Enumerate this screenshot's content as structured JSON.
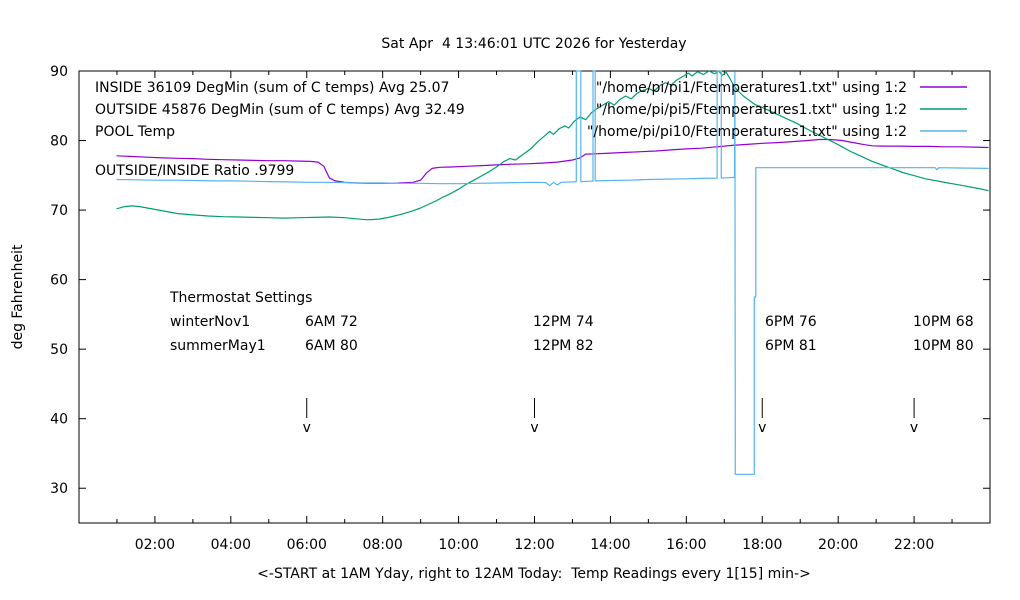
{
  "title": "Sat Apr  4 13:46:01 UTC 2026 for Yesterday",
  "axes": {
    "y_label": "deg Fahrenheit",
    "x_label": "<-START at 1AM Yday, right to 12AM Today:  Temp Readings every 1[15] min->",
    "y_ticks": [
      30,
      40,
      50,
      60,
      70,
      80,
      90
    ],
    "x_ticks": [
      {
        "hour": 2,
        "label": "02:00"
      },
      {
        "hour": 4,
        "label": "04:00"
      },
      {
        "hour": 6,
        "label": "06:00"
      },
      {
        "hour": 8,
        "label": "08:00"
      },
      {
        "hour": 10,
        "label": "10:00"
      },
      {
        "hour": 12,
        "label": "12:00"
      },
      {
        "hour": 14,
        "label": "14:00"
      },
      {
        "hour": 16,
        "label": "16:00"
      },
      {
        "hour": 18,
        "label": "18:00"
      },
      {
        "hour": 20,
        "label": "20:00"
      },
      {
        "hour": 22,
        "label": "22:00"
      }
    ]
  },
  "labels": {
    "inside": "INSIDE 36109 DegMin (sum of C temps) Avg 25.07",
    "outside": "OUTSIDE 45876 DegMin (sum of C temps) Avg 32.49",
    "pool": "POOL Temp",
    "ratio": "OUTSIDE/INSIDE Ratio .9799"
  },
  "legend": [
    {
      "label": "\"/home/pi/pi1/Ftemperatures1.txt\" using 1:2",
      "color": "#9400d3"
    },
    {
      "label": "\"/home/pi/pi5/Ftemperatures1.txt\" using 1:2",
      "color": "#009e73"
    },
    {
      "label": "\"/home/pi/pi10/Ftemperatures1.txt\" using 1:2",
      "color": "#56b4e9"
    }
  ],
  "thermostat": {
    "heading": "Thermostat Settings",
    "rows": [
      {
        "name": "winterNov1",
        "settings": [
          "6AM 72",
          "12PM 74",
          "6PM 76",
          "10PM 68"
        ]
      },
      {
        "name": "summerMay1",
        "settings": [
          "6AM 80",
          "12PM 82",
          "6PM 81",
          "10PM 80"
        ]
      }
    ]
  },
  "arrows": {
    "glyph": "v",
    "hours": [
      6,
      12,
      18,
      22
    ]
  },
  "chart_data": {
    "type": "line",
    "xlim": [
      0,
      24
    ],
    "ylim": [
      25,
      90
    ],
    "xlabel": "<-START at 1AM Yday, right to 12AM Today:  Temp Readings every 1[15] min->",
    "ylabel": "deg Fahrenheit",
    "grid": false,
    "legend_position": "top-right-inside",
    "series": [
      {
        "name": "INSIDE /home/pi/pi1/Ftemperatures1.txt",
        "color": "#9400d3",
        "points": [
          [
            1.0,
            77.8
          ],
          [
            1.4,
            77.7
          ],
          [
            1.8,
            77.6
          ],
          [
            2.2,
            77.5
          ],
          [
            2.6,
            77.45
          ],
          [
            3.0,
            77.4
          ],
          [
            3.4,
            77.3
          ],
          [
            3.8,
            77.25
          ],
          [
            4.2,
            77.2
          ],
          [
            4.6,
            77.15
          ],
          [
            5.0,
            77.1
          ],
          [
            5.4,
            77.1
          ],
          [
            5.8,
            77.05
          ],
          [
            6.1,
            77.0
          ],
          [
            6.3,
            76.9
          ],
          [
            6.45,
            76.3
          ],
          [
            6.6,
            74.6
          ],
          [
            6.75,
            74.2
          ],
          [
            7.0,
            74.0
          ],
          [
            7.3,
            73.9
          ],
          [
            7.6,
            73.85
          ],
          [
            8.0,
            73.85
          ],
          [
            8.4,
            73.9
          ],
          [
            8.8,
            74.0
          ],
          [
            9.0,
            74.3
          ],
          [
            9.15,
            75.3
          ],
          [
            9.3,
            76.0
          ],
          [
            9.5,
            76.15
          ],
          [
            9.8,
            76.2
          ],
          [
            10.2,
            76.3
          ],
          [
            10.6,
            76.4
          ],
          [
            11.0,
            76.5
          ],
          [
            11.4,
            76.6
          ],
          [
            11.8,
            76.65
          ],
          [
            12.2,
            76.75
          ],
          [
            12.6,
            76.9
          ],
          [
            13.0,
            77.2
          ],
          [
            13.2,
            77.5
          ],
          [
            13.35,
            78.05
          ],
          [
            13.6,
            78.1
          ],
          [
            14.0,
            78.2
          ],
          [
            14.4,
            78.3
          ],
          [
            14.8,
            78.4
          ],
          [
            15.2,
            78.5
          ],
          [
            15.6,
            78.65
          ],
          [
            16.0,
            78.8
          ],
          [
            16.4,
            78.9
          ],
          [
            16.8,
            79.1
          ],
          [
            17.2,
            79.3
          ],
          [
            17.6,
            79.45
          ],
          [
            18.0,
            79.6
          ],
          [
            18.4,
            79.7
          ],
          [
            18.8,
            79.85
          ],
          [
            19.2,
            80.0
          ],
          [
            19.5,
            80.15
          ],
          [
            19.8,
            80.15
          ],
          [
            20.1,
            80.0
          ],
          [
            20.4,
            79.7
          ],
          [
            20.7,
            79.4
          ],
          [
            20.9,
            79.25
          ],
          [
            21.2,
            79.2
          ],
          [
            21.6,
            79.2
          ],
          [
            22.0,
            79.15
          ],
          [
            22.4,
            79.15
          ],
          [
            22.8,
            79.1
          ],
          [
            23.2,
            79.1
          ],
          [
            23.6,
            79.05
          ],
          [
            23.95,
            79.0
          ]
        ]
      },
      {
        "name": "OUTSIDE /home/pi/pi5/Ftemperatures1.txt",
        "color": "#009e73",
        "points": [
          [
            1.0,
            70.2
          ],
          [
            1.2,
            70.5
          ],
          [
            1.4,
            70.6
          ],
          [
            1.6,
            70.5
          ],
          [
            1.8,
            70.3
          ],
          [
            2.0,
            70.1
          ],
          [
            2.3,
            69.8
          ],
          [
            2.6,
            69.5
          ],
          [
            3.0,
            69.3
          ],
          [
            3.4,
            69.15
          ],
          [
            3.8,
            69.05
          ],
          [
            4.2,
            69.0
          ],
          [
            4.6,
            68.95
          ],
          [
            5.0,
            68.9
          ],
          [
            5.4,
            68.85
          ],
          [
            5.8,
            68.9
          ],
          [
            6.2,
            68.95
          ],
          [
            6.6,
            69.0
          ],
          [
            7.0,
            68.9
          ],
          [
            7.3,
            68.75
          ],
          [
            7.6,
            68.6
          ],
          [
            7.9,
            68.7
          ],
          [
            8.2,
            69.0
          ],
          [
            8.5,
            69.4
          ],
          [
            8.8,
            69.9
          ],
          [
            9.0,
            70.3
          ],
          [
            9.2,
            70.8
          ],
          [
            9.4,
            71.3
          ],
          [
            9.6,
            71.9
          ],
          [
            9.8,
            72.4
          ],
          [
            10.0,
            73.0
          ],
          [
            10.2,
            73.7
          ],
          [
            10.4,
            74.3
          ],
          [
            10.6,
            74.9
          ],
          [
            10.8,
            75.5
          ],
          [
            11.0,
            76.2
          ],
          [
            11.2,
            77.0
          ],
          [
            11.35,
            77.4
          ],
          [
            11.5,
            77.2
          ],
          [
            11.7,
            78.0
          ],
          [
            11.9,
            78.8
          ],
          [
            12.1,
            79.9
          ],
          [
            12.25,
            80.6
          ],
          [
            12.4,
            81.3
          ],
          [
            12.5,
            80.9
          ],
          [
            12.65,
            81.7
          ],
          [
            12.8,
            82.1
          ],
          [
            12.9,
            81.8
          ],
          [
            13.05,
            82.8
          ],
          [
            13.2,
            83.4
          ],
          [
            13.35,
            83.0
          ],
          [
            13.5,
            84.0
          ],
          [
            13.65,
            84.6
          ],
          [
            13.8,
            85.1
          ],
          [
            13.95,
            85.6
          ],
          [
            14.1,
            85.1
          ],
          [
            14.25,
            85.9
          ],
          [
            14.4,
            86.4
          ],
          [
            14.55,
            86.0
          ],
          [
            14.7,
            86.8
          ],
          [
            14.85,
            87.2
          ],
          [
            15.0,
            87.5
          ],
          [
            15.15,
            87.1
          ],
          [
            15.3,
            87.9
          ],
          [
            15.45,
            88.3
          ],
          [
            15.6,
            88.0
          ],
          [
            15.75,
            88.7
          ],
          [
            15.9,
            89.2
          ],
          [
            16.05,
            89.7
          ],
          [
            16.15,
            89.3
          ],
          [
            16.3,
            89.9
          ],
          [
            16.45,
            89.5
          ],
          [
            16.6,
            90.0
          ],
          [
            16.75,
            89.6
          ],
          [
            16.85,
            90.0
          ],
          [
            16.95,
            89.4
          ],
          [
            17.05,
            89.8
          ],
          [
            17.15,
            88.9
          ],
          [
            17.25,
            87.9
          ],
          [
            17.35,
            87.2
          ],
          [
            17.5,
            86.4
          ],
          [
            17.65,
            85.8
          ],
          [
            17.8,
            85.2
          ],
          [
            17.95,
            84.9
          ],
          [
            18.1,
            84.5
          ],
          [
            18.3,
            84.0
          ],
          [
            18.5,
            83.5
          ],
          [
            18.7,
            83.0
          ],
          [
            18.9,
            82.5
          ],
          [
            19.1,
            81.9
          ],
          [
            19.3,
            81.3
          ],
          [
            19.5,
            80.8
          ],
          [
            19.7,
            80.2
          ],
          [
            19.9,
            79.7
          ],
          [
            20.1,
            79.1
          ],
          [
            20.3,
            78.5
          ],
          [
            20.5,
            78.0
          ],
          [
            20.7,
            77.5
          ],
          [
            20.9,
            77.0
          ],
          [
            21.1,
            76.6
          ],
          [
            21.3,
            76.2
          ],
          [
            21.5,
            75.8
          ],
          [
            21.7,
            75.4
          ],
          [
            21.9,
            75.1
          ],
          [
            22.1,
            74.8
          ],
          [
            22.3,
            74.5
          ],
          [
            22.5,
            74.3
          ],
          [
            22.7,
            74.1
          ],
          [
            22.9,
            73.9
          ],
          [
            23.1,
            73.7
          ],
          [
            23.3,
            73.5
          ],
          [
            23.5,
            73.3
          ],
          [
            23.7,
            73.1
          ],
          [
            23.95,
            72.8
          ]
        ]
      },
      {
        "name": "POOL /home/pi/pi10/Ftemperatures1.txt",
        "color": "#56b4e9",
        "points": [
          [
            1.0,
            74.4
          ],
          [
            1.5,
            74.35
          ],
          [
            2.0,
            74.3
          ],
          [
            2.5,
            74.3
          ],
          [
            3.0,
            74.25
          ],
          [
            3.5,
            74.2
          ],
          [
            4.0,
            74.2
          ],
          [
            4.5,
            74.15
          ],
          [
            5.0,
            74.1
          ],
          [
            5.5,
            74.05
          ],
          [
            6.0,
            74.0
          ],
          [
            6.5,
            74.0
          ],
          [
            7.0,
            73.95
          ],
          [
            7.5,
            73.9
          ],
          [
            8.0,
            73.9
          ],
          [
            8.5,
            73.85
          ],
          [
            9.0,
            73.85
          ],
          [
            9.5,
            73.8
          ],
          [
            10.0,
            73.8
          ],
          [
            10.5,
            73.85
          ],
          [
            11.0,
            73.9
          ],
          [
            11.5,
            73.95
          ],
          [
            12.0,
            74.0
          ],
          [
            12.3,
            73.95
          ],
          [
            12.4,
            73.5
          ],
          [
            12.5,
            74.0
          ],
          [
            12.6,
            73.6
          ],
          [
            12.7,
            74.0
          ],
          [
            13.0,
            74.05
          ],
          [
            13.1,
            74.1
          ],
          [
            13.1,
            90
          ],
          [
            13.22,
            90
          ],
          [
            13.22,
            74.1
          ],
          [
            13.45,
            74.15
          ],
          [
            13.54,
            74.15
          ],
          [
            13.54,
            90
          ],
          [
            13.6,
            90
          ],
          [
            13.6,
            74.2
          ],
          [
            14.0,
            74.25
          ],
          [
            14.5,
            74.3
          ],
          [
            15.0,
            74.4
          ],
          [
            15.5,
            74.45
          ],
          [
            16.0,
            74.5
          ],
          [
            16.4,
            74.55
          ],
          [
            16.81,
            74.6
          ],
          [
            16.81,
            90
          ],
          [
            16.92,
            90
          ],
          [
            16.92,
            74.6
          ],
          [
            17.1,
            74.65
          ],
          [
            17.27,
            74.7
          ],
          [
            17.28,
            89.8
          ],
          [
            17.29,
            32
          ],
          [
            17.79,
            32
          ],
          [
            17.79,
            57.5
          ],
          [
            17.83,
            57.5
          ],
          [
            17.83,
            76.1
          ],
          [
            18.2,
            76.1
          ],
          [
            18.7,
            76.1
          ],
          [
            19.2,
            76.1
          ],
          [
            19.7,
            76.1
          ],
          [
            20.2,
            76.1
          ],
          [
            20.7,
            76.1
          ],
          [
            21.2,
            76.1
          ],
          [
            21.7,
            76.1
          ],
          [
            22.2,
            76.1
          ],
          [
            22.55,
            76.1
          ],
          [
            22.6,
            75.8
          ],
          [
            22.65,
            76.1
          ],
          [
            23.2,
            76.05
          ],
          [
            23.95,
            76.0
          ]
        ]
      }
    ]
  }
}
